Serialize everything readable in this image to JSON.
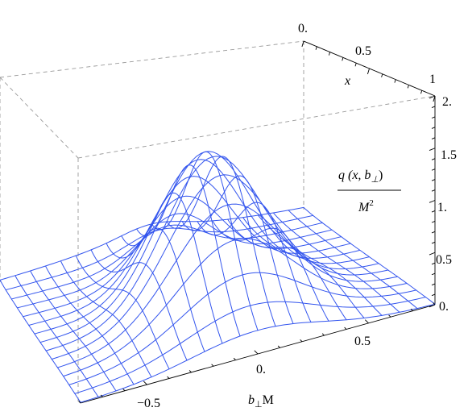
{
  "chart_data": {
    "type": "surface3d",
    "title": "",
    "zlabel_numerator": "q (x, b",
    "zlabel_numerator_sub": "⊥",
    "zlabel_numerator_close": ")",
    "zlabel_denominator": "M",
    "zlabel_denominator_sup": "2",
    "xlabel": "x",
    "blabel_main": "b",
    "blabel_sub": "⊥",
    "blabel_tail": "M",
    "x_ticks": [
      "0.",
      "0.5",
      "1"
    ],
    "b_ticks": [
      "−0.5",
      "0.",
      "0.5"
    ],
    "z_ticks": [
      "0.",
      "0.5",
      "1.",
      "1.5",
      "2."
    ],
    "x_range": [
      0,
      1
    ],
    "b_range": [
      -0.8,
      0.8
    ],
    "z_range": [
      0,
      2
    ],
    "mesh_color": "#3355ee",
    "mesh_lines_x": 15,
    "mesh_lines_b": 21,
    "surface_peak": 1.45,
    "surface_peak_x": 0.55
  }
}
